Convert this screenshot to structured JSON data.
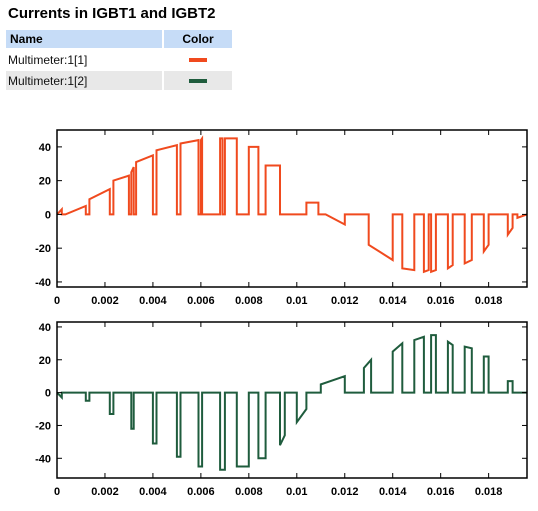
{
  "title": "Currents in IGBT1 and IGBT2",
  "legend": {
    "headers": {
      "name": "Name",
      "color": "Color"
    },
    "rows": [
      {
        "name": "Multimeter:1[1]",
        "color": "#f04a1e"
      },
      {
        "name": "Multimeter:1[2]",
        "color": "#1f5c3d"
      }
    ]
  },
  "chart_data": [
    {
      "type": "line",
      "grid": false,
      "xlim": [
        0,
        0.0196
      ],
      "ylim": [
        -43,
        50
      ],
      "xticks": [
        "0",
        "0.002",
        "0.004",
        "0.006",
        "0.008",
        "0.01",
        "0.012",
        "0.014",
        "0.016",
        "0.018"
      ],
      "xtick_values": [
        0,
        0.002,
        0.004,
        0.006,
        0.008,
        0.01,
        0.012,
        0.014,
        0.016,
        0.018
      ],
      "yticks": [
        "40",
        "20",
        "0",
        "-20",
        "-40"
      ],
      "ytick_values": [
        40,
        20,
        0,
        -20,
        -40
      ],
      "series": [
        {
          "name": "Multimeter:1[1]",
          "color": "#f04a1e",
          "x": [
            0,
            0.0002,
            0.0002,
            0.00035,
            0.00035,
            0.0012,
            0.0012,
            0.00135,
            0.00135,
            0.0022,
            0.0022,
            0.00235,
            0.00235,
            0.003,
            0.003,
            0.0031,
            0.0031,
            0.0032,
            0.0032,
            0.0033,
            0.0033,
            0.004,
            0.004,
            0.00415,
            0.00415,
            0.005,
            0.005,
            0.00515,
            0.00515,
            0.0059,
            0.0059,
            0.006,
            0.006,
            0.00605,
            0.00605,
            0.0068,
            0.0068,
            0.0069,
            0.0069,
            0.007,
            0.007,
            0.0075,
            0.0075,
            0.008,
            0.008,
            0.0084,
            0.0084,
            0.0087,
            0.0087,
            0.0093,
            0.0093,
            0.0095,
            0.0095,
            0.0104,
            0.0104,
            0.0109,
            0.0109,
            0.0112,
            0.0112,
            0.012,
            0.012,
            0.013,
            0.013,
            0.014,
            0.014,
            0.0144,
            0.0144,
            0.0149,
            0.0149,
            0.0153,
            0.0153,
            0.0155,
            0.0155,
            0.0156,
            0.0156,
            0.0158,
            0.0158,
            0.0163,
            0.0163,
            0.0165,
            0.0165,
            0.017,
            0.017,
            0.0173,
            0.0173,
            0.0178,
            0.0178,
            0.018,
            0.018,
            0.0188,
            0.0188,
            0.019,
            0.019,
            0.0192,
            0.0192,
            0.0196
          ],
          "y": [
            0,
            3,
            0,
            0,
            0,
            5,
            0,
            0,
            9,
            15,
            0,
            0,
            20,
            23,
            0,
            0,
            25,
            28,
            0,
            0,
            31,
            35,
            0,
            0,
            38,
            41,
            0,
            0,
            42,
            44,
            0,
            0,
            44,
            45,
            0,
            0,
            45,
            45,
            0,
            0,
            45,
            45,
            0,
            0,
            40,
            40,
            0,
            0,
            29,
            29,
            0,
            0,
            0,
            0,
            7,
            7,
            0,
            0,
            0,
            -6,
            0,
            0,
            -18,
            -27,
            0,
            0,
            -32,
            -33,
            0,
            0,
            -34,
            -33,
            0,
            0,
            -34,
            -33,
            0,
            0,
            -32,
            -30,
            0,
            0,
            -29,
            -27,
            0,
            0,
            -22,
            -18,
            0,
            0,
            -12,
            -8,
            0,
            0,
            -2,
            0
          ]
        }
      ]
    },
    {
      "type": "line",
      "grid": false,
      "xlim": [
        0,
        0.0196
      ],
      "ylim": [
        -52,
        43
      ],
      "xticks": [
        "0",
        "0.002",
        "0.004",
        "0.006",
        "0.008",
        "0.01",
        "0.012",
        "0.014",
        "0.016",
        "0.018"
      ],
      "xtick_values": [
        0,
        0.002,
        0.004,
        0.006,
        0.008,
        0.01,
        0.012,
        0.014,
        0.016,
        0.018
      ],
      "yticks": [
        "40",
        "20",
        "0",
        "-20",
        "-40"
      ],
      "ytick_values": [
        40,
        20,
        0,
        -20,
        -40
      ],
      "series": [
        {
          "name": "Multimeter:1[2]",
          "color": "#1f5c3d",
          "x": [
            0,
            0.0002,
            0.0002,
            0.0012,
            0.0012,
            0.00135,
            0.00135,
            0.0022,
            0.0022,
            0.00235,
            0.00235,
            0.0031,
            0.0031,
            0.0032,
            0.0032,
            0.004,
            0.004,
            0.00415,
            0.00415,
            0.005,
            0.005,
            0.00515,
            0.00515,
            0.0059,
            0.0059,
            0.00605,
            0.00605,
            0.0068,
            0.0068,
            0.007,
            0.007,
            0.0075,
            0.0075,
            0.008,
            0.008,
            0.0084,
            0.0084,
            0.0087,
            0.0087,
            0.0093,
            0.0093,
            0.0095,
            0.0095,
            0.01,
            0.01,
            0.0104,
            0.0104,
            0.011,
            0.011,
            0.012,
            0.012,
            0.0128,
            0.0128,
            0.0131,
            0.0131,
            0.014,
            0.014,
            0.0144,
            0.0144,
            0.0149,
            0.0149,
            0.0153,
            0.0153,
            0.0156,
            0.0156,
            0.0158,
            0.0158,
            0.0163,
            0.0163,
            0.0165,
            0.0165,
            0.017,
            0.017,
            0.0173,
            0.0173,
            0.0178,
            0.0178,
            0.018,
            0.018,
            0.0188,
            0.0188,
            0.019,
            0.019,
            0.0196
          ],
          "y": [
            0,
            -3,
            0,
            0,
            -5,
            -5,
            0,
            0,
            -13,
            -13,
            0,
            0,
            -22,
            -22,
            0,
            0,
            -31,
            -31,
            0,
            0,
            -39,
            -39,
            0,
            0,
            -45,
            -45,
            0,
            0,
            -47,
            -47,
            0,
            0,
            -45,
            -45,
            0,
            0,
            -40,
            -40,
            0,
            0,
            -32,
            -26,
            0,
            0,
            -18,
            -10,
            0,
            0,
            5,
            10,
            0,
            0,
            15,
            20,
            0,
            0,
            25,
            30,
            0,
            0,
            32,
            34,
            0,
            0,
            35,
            35,
            0,
            0,
            31,
            29,
            0,
            0,
            28,
            27,
            0,
            0,
            22,
            22,
            0,
            0,
            7,
            7,
            0,
            0
          ]
        }
      ]
    }
  ]
}
